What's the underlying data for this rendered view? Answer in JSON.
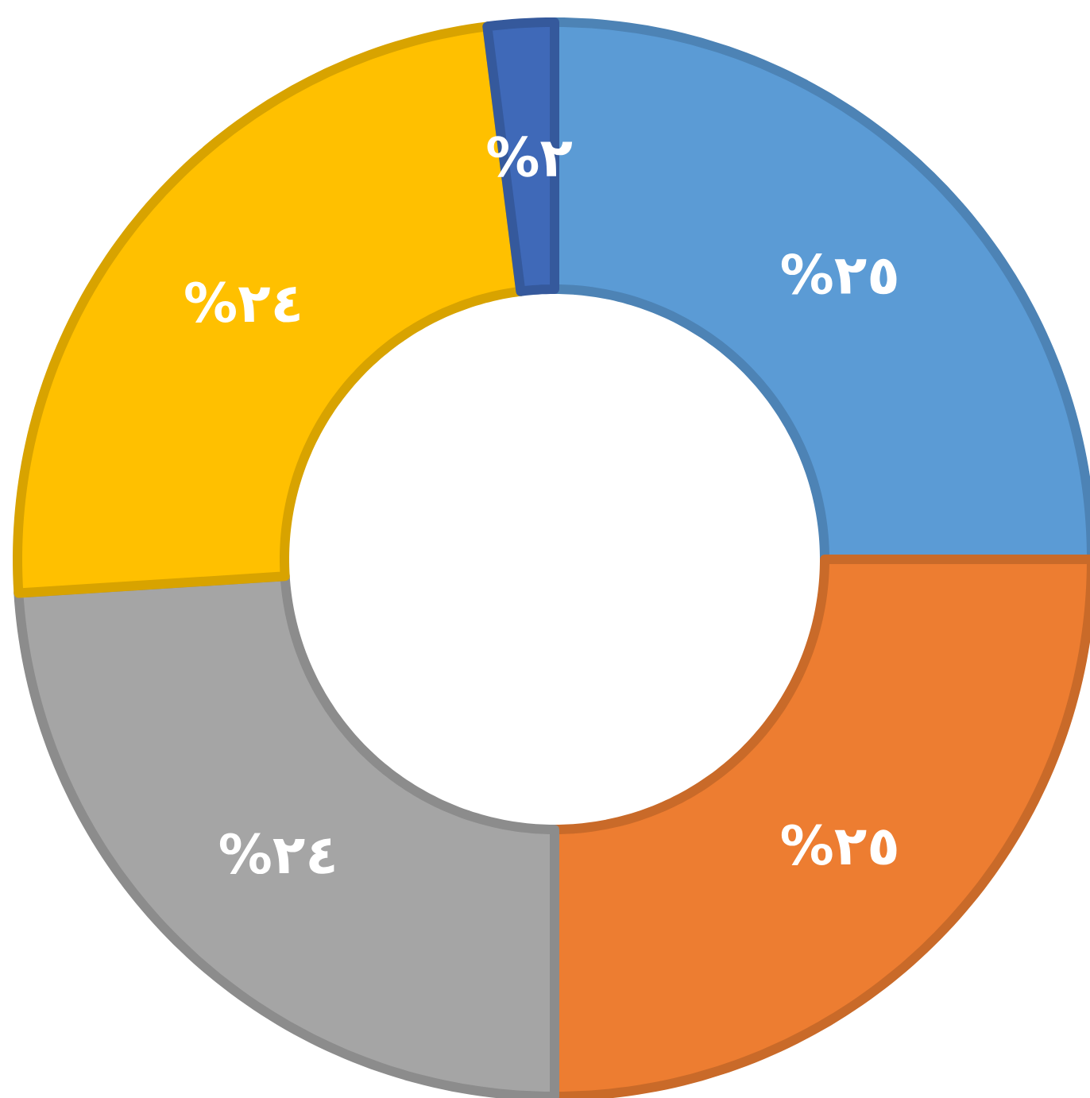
{
  "chart_data": {
    "type": "donut",
    "categories": [
      null,
      null,
      null,
      null,
      null
    ],
    "values": [
      25,
      25,
      24,
      24,
      2
    ],
    "colors": [
      "#5b9bd5",
      "#ed7d31",
      "#a5a5a5",
      "#ffc000",
      "#3f69b8"
    ],
    "value_labels": [
      "%٢٥",
      "%٢٥",
      "%٢٤",
      "%٢٤",
      "%٢"
    ]
  }
}
